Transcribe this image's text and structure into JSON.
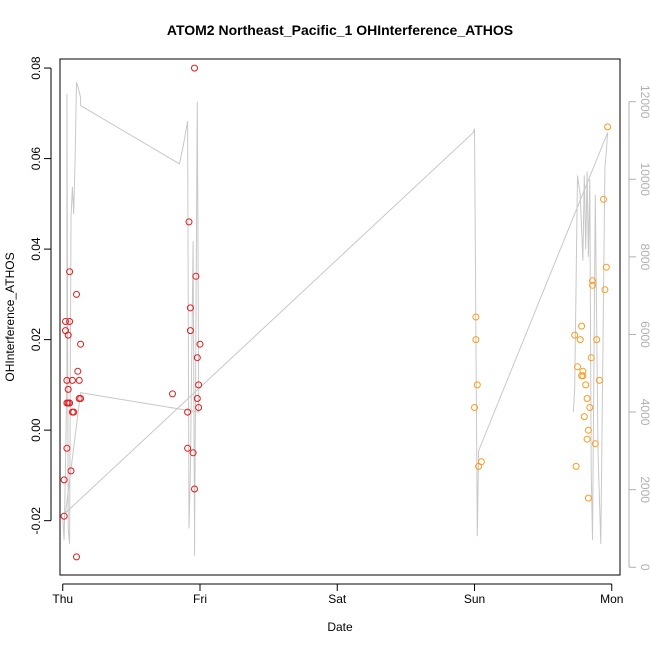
{
  "chart_data": {
    "type": "scatter",
    "title": "ATOM2 Northeast_Pacific_1 OHInterference_ATHOS",
    "xlabel": "Date",
    "ylabel": "OHInterference_ATHOS",
    "x_categories": [
      "Thu",
      "Fri",
      "Sat",
      "Sun",
      "Mon"
    ],
    "xlim": [
      -0.02,
      4.06
    ],
    "ylim": [
      -0.032,
      0.082
    ],
    "y_ticks": [
      -0.02,
      0.0,
      0.02,
      0.04,
      0.06,
      0.08
    ],
    "y_tick_labels": [
      "-0.02",
      "0.00",
      "0.02",
      "0.04",
      "0.06",
      "0.08"
    ],
    "y2lim": [
      -200,
      13100
    ],
    "y2_ticks": [
      0,
      2000,
      4000,
      6000,
      8000,
      10000,
      12000
    ],
    "y2_tick_labels": [
      "0",
      "2000",
      "4000",
      "6000",
      "8000",
      "10000",
      "12000"
    ],
    "series": [
      {
        "color": "#e41a1c",
        "points": [
          [
            0.01,
            -0.011
          ],
          [
            0.01,
            -0.019
          ],
          [
            0.02,
            0.024
          ],
          [
            0.02,
            0.022
          ],
          [
            0.03,
            0.011
          ],
          [
            0.03,
            0.006
          ],
          [
            0.03,
            -0.004
          ],
          [
            0.04,
            0.021
          ],
          [
            0.04,
            0.009
          ],
          [
            0.04,
            0.006
          ],
          [
            0.05,
            0.035
          ],
          [
            0.05,
            0.024
          ],
          [
            0.05,
            0.006
          ],
          [
            0.06,
            -0.009
          ],
          [
            0.07,
            0.004
          ],
          [
            0.07,
            0.011
          ],
          [
            0.08,
            0.004
          ],
          [
            0.1,
            0.03
          ],
          [
            0.1,
            -0.028
          ],
          [
            0.11,
            0.013
          ],
          [
            0.12,
            0.007
          ],
          [
            0.12,
            0.011
          ],
          [
            0.13,
            0.019
          ],
          [
            0.13,
            0.007
          ],
          [
            0.8,
            0.008
          ],
          [
            0.91,
            0.004
          ],
          [
            0.91,
            -0.004
          ],
          [
            0.92,
            0.046
          ],
          [
            0.93,
            0.027
          ],
          [
            0.93,
            0.022
          ],
          [
            0.95,
            -0.005
          ],
          [
            0.96,
            -0.013
          ],
          [
            0.96,
            0.08
          ],
          [
            0.97,
            0.034
          ],
          [
            0.98,
            0.007
          ],
          [
            0.98,
            0.016
          ],
          [
            0.99,
            0.005
          ],
          [
            0.99,
            0.01
          ],
          [
            1.0,
            0.019
          ]
        ]
      },
      {
        "color": "#ff9a1c",
        "points": [
          [
            3.0,
            0.005
          ],
          [
            3.01,
            0.025
          ],
          [
            3.01,
            0.02
          ],
          [
            3.02,
            0.01
          ],
          [
            3.03,
            -0.008
          ],
          [
            3.05,
            -0.007
          ],
          [
            3.73,
            0.021
          ],
          [
            3.74,
            -0.008
          ],
          [
            3.75,
            0.014
          ],
          [
            3.77,
            0.02
          ],
          [
            3.78,
            0.023
          ],
          [
            3.78,
            0.012
          ],
          [
            3.79,
            0.012
          ],
          [
            3.79,
            0.013
          ],
          [
            3.8,
            0.003
          ],
          [
            3.81,
            0.01
          ],
          [
            3.82,
            -0.002
          ],
          [
            3.82,
            0.007
          ],
          [
            3.83,
            -0.015
          ],
          [
            3.83,
            0.0
          ],
          [
            3.84,
            0.005
          ],
          [
            3.85,
            0.016
          ],
          [
            3.86,
            0.032
          ],
          [
            3.86,
            0.033
          ],
          [
            3.88,
            -0.003
          ],
          [
            3.89,
            0.02
          ],
          [
            3.91,
            0.011
          ],
          [
            3.94,
            0.051
          ],
          [
            3.95,
            0.031
          ],
          [
            3.96,
            0.036
          ],
          [
            3.97,
            0.067
          ]
        ]
      }
    ],
    "line_secondary": {
      "color": "#c8c8c8",
      "points": [
        [
          0.0,
          1300
        ],
        [
          0.01,
          700
        ],
        [
          0.02,
          2600
        ],
        [
          0.03,
          5000
        ],
        [
          0.03,
          12200
        ],
        [
          0.04,
          1000
        ],
        [
          0.05,
          600
        ],
        [
          0.06,
          9000
        ],
        [
          0.07,
          9800
        ],
        [
          0.08,
          9100
        ],
        [
          0.09,
          10500
        ],
        [
          0.1,
          12500
        ],
        [
          0.11,
          12400
        ],
        [
          0.13,
          12100
        ],
        [
          0.13,
          11900
        ],
        [
          0.85,
          10400
        ],
        [
          0.88,
          10900
        ],
        [
          0.91,
          11500
        ],
        [
          0.92,
          1000
        ],
        [
          0.93,
          2500
        ],
        [
          0.95,
          8400
        ],
        [
          0.96,
          1000
        ],
        [
          0.96,
          300
        ],
        [
          0.98,
          12000
        ],
        [
          0.99,
          5000
        ],
        [
          0.99,
          4000
        ],
        [
          0.13,
          4500
        ],
        [
          0.02,
          1400
        ],
        [
          2.99,
          11200
        ],
        [
          3.0,
          11300
        ],
        [
          3.02,
          800
        ],
        [
          3.03,
          3000
        ],
        [
          3.97,
          11200
        ],
        [
          3.96,
          10700
        ],
        [
          3.95,
          10300
        ],
        [
          3.92,
          600
        ],
        [
          3.9,
          3000
        ],
        [
          3.88,
          9600
        ],
        [
          3.86,
          700
        ],
        [
          3.85,
          2500
        ],
        [
          3.84,
          10000
        ],
        [
          3.83,
          8000
        ],
        [
          3.82,
          10200
        ],
        [
          3.81,
          8200
        ],
        [
          3.8,
          10100
        ],
        [
          3.79,
          7900
        ],
        [
          3.77,
          9600
        ],
        [
          3.75,
          10100
        ],
        [
          3.73,
          4600
        ],
        [
          3.72,
          4000
        ]
      ]
    }
  }
}
